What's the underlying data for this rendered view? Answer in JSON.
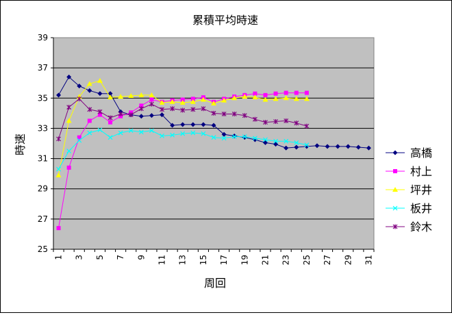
{
  "chart_data": {
    "type": "line",
    "title": "累積平均時速",
    "xlabel": "周回",
    "ylabel": "時速",
    "ylim": [
      25,
      39
    ],
    "yticks": [
      25,
      27,
      29,
      31,
      33,
      35,
      37,
      39
    ],
    "xlim": [
      1,
      31
    ],
    "xticks": [
      1,
      3,
      5,
      7,
      9,
      11,
      13,
      15,
      17,
      19,
      21,
      23,
      25,
      27,
      29,
      31
    ],
    "grid": "horizontal",
    "legend_position": "right",
    "plot_background": "#c0c0c0",
    "series": [
      {
        "name": "高橋",
        "color": "#000080",
        "marker": "diamond",
        "values": [
          35.2,
          36.4,
          35.8,
          35.5,
          35.3,
          35.3,
          34.1,
          33.9,
          33.8,
          33.85,
          33.9,
          33.2,
          33.25,
          33.25,
          33.25,
          33.2,
          32.6,
          32.5,
          32.4,
          32.25,
          32.05,
          31.95,
          31.7,
          31.75,
          31.8,
          31.85,
          31.8,
          31.8,
          31.8,
          31.75,
          31.7
        ]
      },
      {
        "name": "村上",
        "color": "#ff00ff",
        "marker": "square",
        "values": [
          26.4,
          30.4,
          32.4,
          33.5,
          33.9,
          33.4,
          33.8,
          34.05,
          34.5,
          34.9,
          34.75,
          34.85,
          34.9,
          34.95,
          35.05,
          34.75,
          34.95,
          35.1,
          35.2,
          35.3,
          35.2,
          35.3,
          35.35,
          35.35,
          35.35
        ]
      },
      {
        "name": "坪井",
        "color": "#ffff00",
        "marker": "triangle",
        "values": [
          29.9,
          33.5,
          35.1,
          35.95,
          36.15,
          35.05,
          35.1,
          35.15,
          35.2,
          35.2,
          34.7,
          34.75,
          34.7,
          34.75,
          34.9,
          34.65,
          34.85,
          35.0,
          35.1,
          35.05,
          34.9,
          34.95,
          35.0,
          34.95,
          34.95
        ]
      },
      {
        "name": "板井",
        "color": "#00ffff",
        "marker": "x",
        "values": [
          30.3,
          31.5,
          32.2,
          32.7,
          32.9,
          32.4,
          32.7,
          32.85,
          32.75,
          32.85,
          32.5,
          32.55,
          32.65,
          32.7,
          32.65,
          32.4,
          32.35,
          32.45,
          32.45,
          32.35,
          32.25,
          32.15,
          32.15,
          32.05,
          31.9
        ]
      },
      {
        "name": "鈴木",
        "color": "#800080",
        "marker": "star",
        "values": [
          32.3,
          34.4,
          34.95,
          34.25,
          34.1,
          33.7,
          33.95,
          33.9,
          34.3,
          34.6,
          34.25,
          34.3,
          34.2,
          34.25,
          34.3,
          34.0,
          33.95,
          33.95,
          33.85,
          33.6,
          33.4,
          33.45,
          33.5,
          33.35,
          33.15
        ]
      }
    ]
  }
}
